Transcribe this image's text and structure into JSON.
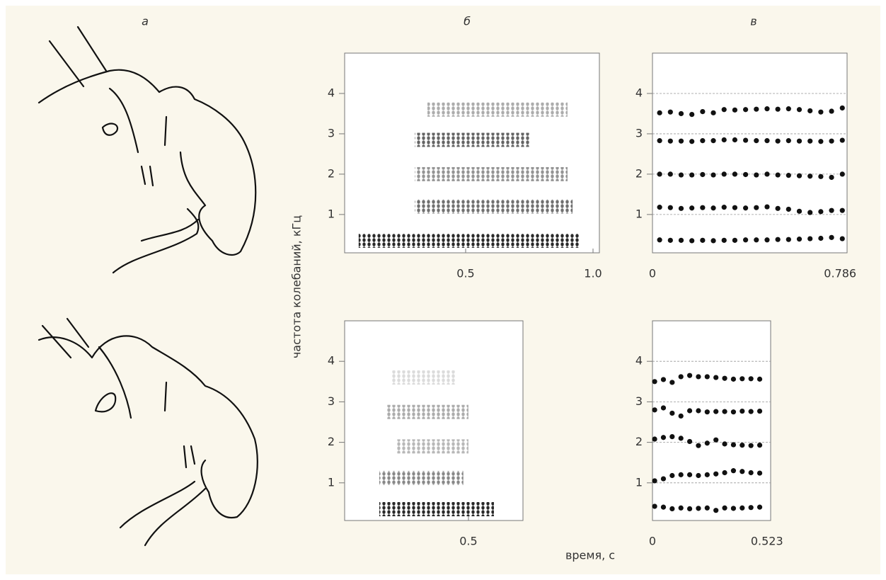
{
  "panel_labels": [
    "а",
    "б",
    "в"
  ],
  "ylabel": "частота колебаний, кГц",
  "xlabel": "время, с",
  "chart_data": [
    {
      "type": "spectrogram",
      "xlim": [
        0.025,
        1.025
      ],
      "ylim": [
        0.05,
        5
      ],
      "xticks": [
        0.5,
        {
          "value": 1,
          "label": "1.0"
        }
      ],
      "yticks": [
        1,
        2,
        3,
        4
      ],
      "bands": [
        {
          "freq": 0.35,
          "start": 0.08,
          "end": 0.95,
          "intensity": 0.9
        },
        {
          "freq": 1.2,
          "start": 0.3,
          "end": 0.92,
          "intensity": 0.6
        },
        {
          "freq": 2.0,
          "start": 0.3,
          "end": 0.9,
          "intensity": 0.45
        },
        {
          "freq": 2.85,
          "start": 0.3,
          "end": 0.75,
          "intensity": 0.65
        },
        {
          "freq": 3.6,
          "start": 0.35,
          "end": 0.9,
          "intensity": 0.35
        }
      ]
    },
    {
      "type": "scatter",
      "xlim": [
        0,
        0.815
      ],
      "ylim": [
        0.05,
        5
      ],
      "xticks": [
        0,
        0.786
      ],
      "yticks": [
        1,
        2,
        3,
        4
      ],
      "grid": true,
      "color": "#111",
      "x": [
        0.03,
        0.075,
        0.12,
        0.165,
        0.21,
        0.255,
        0.3,
        0.345,
        0.39,
        0.435,
        0.48,
        0.525,
        0.57,
        0.615,
        0.66,
        0.705,
        0.75,
        0.795
      ],
      "series": [
        {
          "values": [
            3.52,
            3.54,
            3.5,
            3.48,
            3.55,
            3.52,
            3.6,
            3.59,
            3.6,
            3.61,
            3.62,
            3.61,
            3.62,
            3.6,
            3.57,
            3.54,
            3.56,
            3.64
          ]
        },
        {
          "values": [
            2.83,
            2.82,
            2.82,
            2.81,
            2.83,
            2.83,
            2.85,
            2.85,
            2.84,
            2.83,
            2.83,
            2.82,
            2.83,
            2.82,
            2.82,
            2.81,
            2.82,
            2.84
          ]
        },
        {
          "values": [
            2.0,
            2.0,
            1.98,
            1.98,
            1.99,
            1.98,
            2.0,
            2.0,
            1.99,
            1.98,
            2.0,
            1.98,
            1.97,
            1.96,
            1.95,
            1.94,
            1.92,
            2.0
          ]
        },
        {
          "values": [
            1.18,
            1.17,
            1.15,
            1.16,
            1.17,
            1.16,
            1.18,
            1.17,
            1.16,
            1.17,
            1.19,
            1.15,
            1.13,
            1.08,
            1.05,
            1.07,
            1.1,
            1.1
          ]
        },
        {
          "values": [
            0.37,
            0.36,
            0.36,
            0.35,
            0.36,
            0.35,
            0.36,
            0.36,
            0.37,
            0.37,
            0.37,
            0.38,
            0.38,
            0.39,
            0.4,
            0.41,
            0.43,
            0.4
          ]
        }
      ]
    },
    {
      "type": "spectrogram",
      "xlim": [
        0.014,
        0.714
      ],
      "ylim": [
        0.07,
        5
      ],
      "xticks": [
        0.5
      ],
      "yticks": [
        1,
        2,
        3,
        4
      ],
      "bands": [
        {
          "freq": 0.35,
          "start": 0.15,
          "end": 0.6,
          "intensity": 0.9
        },
        {
          "freq": 1.12,
          "start": 0.15,
          "end": 0.48,
          "intensity": 0.5
        },
        {
          "freq": 1.9,
          "start": 0.22,
          "end": 0.5,
          "intensity": 0.3
        },
        {
          "freq": 2.75,
          "start": 0.18,
          "end": 0.5,
          "intensity": 0.35
        },
        {
          "freq": 3.6,
          "start": 0.2,
          "end": 0.45,
          "intensity": 0.15
        }
      ]
    },
    {
      "type": "scatter",
      "xlim": [
        0,
        0.54
      ],
      "ylim": [
        0.07,
        5
      ],
      "xticks": [
        0,
        0.523
      ],
      "yticks": [
        1,
        2,
        3,
        4
      ],
      "grid": true,
      "color": "#111",
      "x": [
        0.01,
        0.05,
        0.09,
        0.13,
        0.17,
        0.21,
        0.25,
        0.29,
        0.33,
        0.37,
        0.41,
        0.45,
        0.49
      ],
      "series": [
        {
          "values": [
            3.5,
            3.55,
            3.48,
            3.62,
            3.65,
            3.62,
            3.62,
            3.6,
            3.58,
            3.56,
            3.57,
            3.57,
            3.56
          ]
        },
        {
          "values": [
            2.8,
            2.85,
            2.72,
            2.65,
            2.78,
            2.78,
            2.75,
            2.76,
            2.76,
            2.75,
            2.77,
            2.76,
            2.77
          ]
        },
        {
          "values": [
            2.08,
            2.12,
            2.14,
            2.1,
            2.02,
            1.92,
            1.98,
            2.06,
            1.96,
            1.94,
            1.93,
            1.92,
            1.93
          ]
        },
        {
          "values": [
            1.05,
            1.1,
            1.18,
            1.2,
            1.2,
            1.18,
            1.2,
            1.22,
            1.25,
            1.3,
            1.28,
            1.25,
            1.24
          ]
        },
        {
          "values": [
            0.42,
            0.4,
            0.36,
            0.38,
            0.36,
            0.37,
            0.38,
            0.32,
            0.38,
            0.37,
            0.38,
            0.39,
            0.4
          ]
        }
      ]
    }
  ]
}
